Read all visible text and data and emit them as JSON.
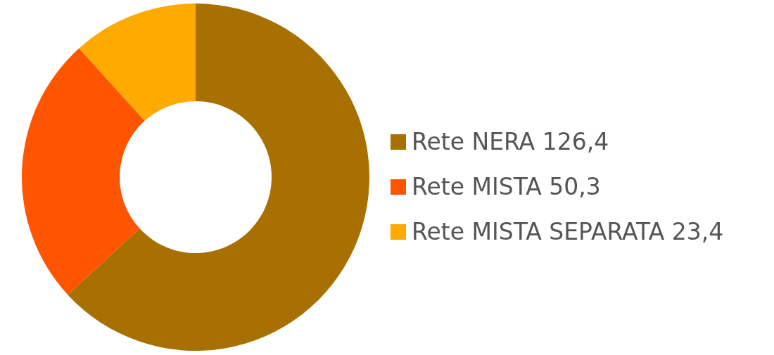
{
  "chart_data": {
    "type": "donut",
    "categories": [
      "Rete NERA",
      "Rete MISTA",
      "Rete MISTA SEPARATA"
    ],
    "values": [
      126.4,
      50.3,
      23.4
    ],
    "value_labels": [
      "126,4",
      "50,3",
      "23,4"
    ],
    "colors": [
      "#a87000",
      "#ff5500",
      "#ffaa00"
    ],
    "legend": "right"
  }
}
